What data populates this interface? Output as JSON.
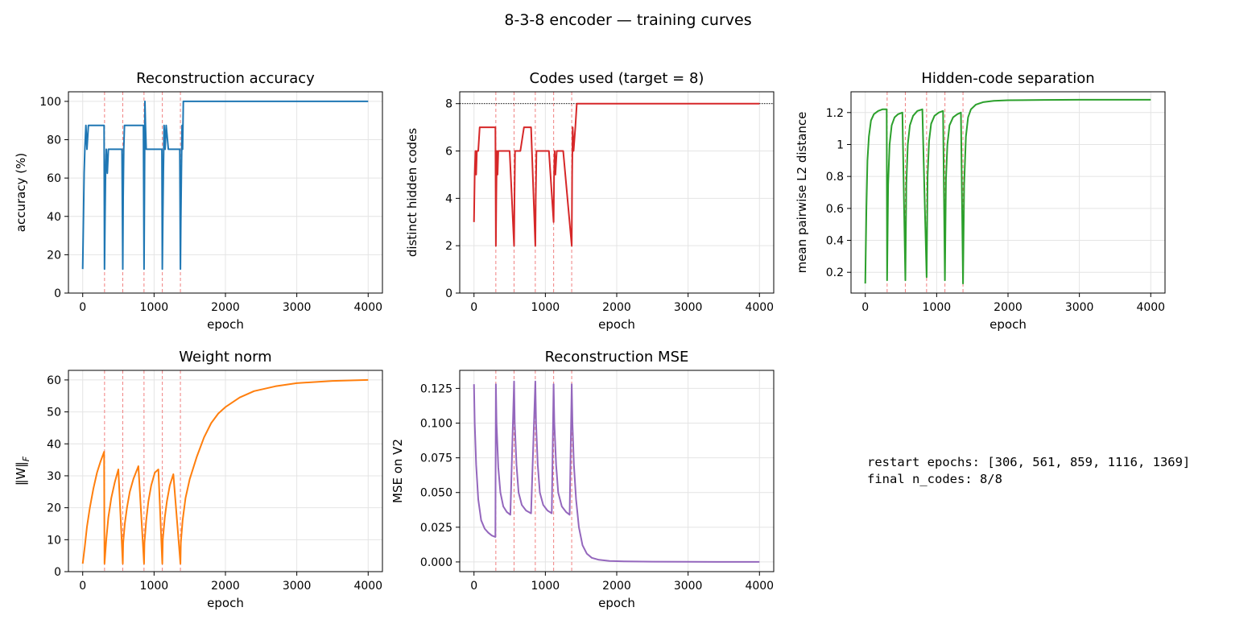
{
  "figure": {
    "suptitle": "8-3-8 encoder — training curves",
    "info_lines": [
      "restart epochs: [306, 561, 859, 1116, 1369]",
      "final n_codes: 8/8"
    ]
  },
  "colors": {
    "accuracy": "#1f77b4",
    "codes": "#d62728",
    "separation": "#2ca02c",
    "weight_norm": "#ff7f0e",
    "mse": "#9467bd",
    "restart_marker": "#f08080",
    "grid": "#e4e4e4",
    "target_line": "#000000"
  },
  "restart_epochs": [
    306,
    561,
    859,
    1116,
    1369
  ],
  "chart_data": [
    {
      "id": "accuracy",
      "type": "line",
      "title": "Reconstruction accuracy",
      "xlabel": "epoch",
      "ylabel": "accuracy (%)",
      "xlim": [
        -200,
        4200
      ],
      "ylim": [
        0,
        105
      ],
      "xticks": [
        0,
        1000,
        2000,
        3000,
        4000
      ],
      "yticks": [
        0,
        20,
        40,
        60,
        80,
        100
      ],
      "grid": true,
      "x": [
        0,
        10,
        20,
        30,
        45,
        60,
        80,
        100,
        150,
        250,
        300,
        306,
        312,
        320,
        330,
        345,
        360,
        380,
        400,
        450,
        550,
        561,
        567,
        575,
        585,
        600,
        620,
        640,
        700,
        800,
        850,
        859,
        865,
        872,
        880,
        890,
        905,
        920,
        950,
        1050,
        1110,
        1116,
        1122,
        1130,
        1140,
        1155,
        1170,
        1200,
        1300,
        1360,
        1369,
        1375,
        1383,
        1392,
        1400,
        1410,
        2000,
        3000,
        4000
      ],
      "y": [
        12.5,
        37.5,
        62.5,
        75,
        87.5,
        75,
        87.5,
        87.5,
        87.5,
        87.5,
        87.5,
        12.5,
        37.5,
        62.5,
        75,
        62.5,
        75,
        75,
        75,
        75,
        75,
        12.5,
        50,
        75,
        87.5,
        87.5,
        87.5,
        87.5,
        87.5,
        87.5,
        87.5,
        12.5,
        50,
        100,
        87.5,
        75,
        75,
        75,
        75,
        75,
        75,
        12.5,
        37.5,
        62.5,
        87.5,
        75,
        87.5,
        75,
        75,
        75,
        12.5,
        37.5,
        62.5,
        87.5,
        75,
        100,
        100,
        100,
        100
      ]
    },
    {
      "id": "codes",
      "type": "line",
      "title": "Codes used (target = 8)",
      "xlabel": "epoch",
      "ylabel": "distinct hidden codes",
      "xlim": [
        -200,
        4200
      ],
      "ylim": [
        0,
        8.5
      ],
      "xticks": [
        0,
        1000,
        2000,
        3000,
        4000
      ],
      "yticks": [
        0,
        2,
        4,
        6,
        8
      ],
      "grid": true,
      "target": 8,
      "x": [
        0,
        10,
        20,
        30,
        40,
        60,
        80,
        100,
        200,
        300,
        306,
        312,
        320,
        330,
        340,
        360,
        400,
        500,
        561,
        567,
        575,
        585,
        600,
        650,
        700,
        800,
        859,
        865,
        875,
        890,
        950,
        1050,
        1116,
        1122,
        1130,
        1140,
        1160,
        1250,
        1369,
        1375,
        1383,
        1395,
        1420,
        1440,
        2000,
        3000,
        4000
      ],
      "y": [
        3,
        5,
        6,
        5,
        6,
        6,
        7,
        7,
        7,
        7,
        2,
        4,
        6,
        5,
        6,
        6,
        6,
        6,
        2,
        4,
        6,
        6,
        6,
        6,
        7,
        7,
        2,
        4,
        6,
        6,
        6,
        6,
        3,
        5,
        6,
        5,
        6,
        6,
        2,
        5,
        7,
        6,
        7,
        8,
        8,
        8,
        8
      ]
    },
    {
      "id": "separation",
      "type": "line",
      "title": "Hidden-code separation",
      "xlabel": "epoch",
      "ylabel": "mean pairwise L2 distance",
      "xlim": [
        -200,
        4200
      ],
      "ylim": [
        0.07,
        1.33
      ],
      "xticks": [
        0,
        1000,
        2000,
        3000,
        4000
      ],
      "yticks": [
        0.2,
        0.4,
        0.6,
        0.8,
        1.0,
        1.2
      ],
      "grid": true,
      "x": [
        0,
        15,
        30,
        50,
        80,
        120,
        180,
        240,
        300,
        306,
        320,
        340,
        370,
        410,
        460,
        520,
        561,
        575,
        595,
        625,
        670,
        730,
        800,
        859,
        873,
        893,
        923,
        970,
        1030,
        1090,
        1116,
        1130,
        1150,
        1180,
        1230,
        1290,
        1340,
        1369,
        1385,
        1410,
        1440,
        1480,
        1550,
        1650,
        1800,
        2000,
        2500,
        3000,
        4000
      ],
      "y": [
        0.13,
        0.6,
        0.9,
        1.05,
        1.15,
        1.19,
        1.21,
        1.22,
        1.22,
        0.15,
        0.75,
        1.0,
        1.12,
        1.17,
        1.19,
        1.2,
        0.15,
        0.75,
        1.0,
        1.12,
        1.18,
        1.21,
        1.22,
        0.17,
        0.8,
        1.02,
        1.13,
        1.18,
        1.2,
        1.21,
        0.15,
        0.78,
        1.0,
        1.12,
        1.17,
        1.19,
        1.2,
        0.13,
        0.75,
        1.05,
        1.17,
        1.22,
        1.25,
        1.265,
        1.273,
        1.277,
        1.279,
        1.28,
        1.28
      ]
    },
    {
      "id": "weight_norm",
      "type": "line",
      "title": "Weight norm",
      "xlabel": "epoch",
      "ylabel": "‖W‖_F",
      "ylabel_main": "‖W‖",
      "ylabel_sub": "F",
      "xlim": [
        -200,
        4200
      ],
      "ylim": [
        0,
        63
      ],
      "xticks": [
        0,
        1000,
        2000,
        3000,
        4000
      ],
      "yticks": [
        0,
        10,
        20,
        30,
        40,
        50,
        60
      ],
      "grid": true,
      "x": [
        0,
        30,
        60,
        100,
        150,
        200,
        250,
        300,
        306,
        330,
        360,
        400,
        450,
        500,
        561,
        567,
        590,
        620,
        660,
        710,
        780,
        859,
        865,
        890,
        920,
        960,
        1010,
        1060,
        1116,
        1122,
        1150,
        1180,
        1220,
        1270,
        1369,
        1375,
        1400,
        1440,
        1500,
        1600,
        1700,
        1800,
        1900,
        2000,
        2200,
        2400,
        2700,
        3000,
        3500,
        4000
      ],
      "y": [
        2.5,
        8,
        14,
        20,
        26,
        31,
        34.5,
        37.5,
        2.5,
        10,
        17,
        23,
        28,
        32,
        2.5,
        9,
        15,
        20,
        25,
        29,
        33,
        2.5,
        9,
        16,
        22,
        27,
        31,
        32,
        2.5,
        10,
        17,
        22,
        27,
        30.5,
        2.5,
        9,
        16,
        23,
        29,
        36,
        42,
        46.5,
        49.5,
        51.5,
        54.5,
        56.5,
        58,
        59,
        59.7,
        60
      ]
    },
    {
      "id": "mse",
      "type": "line",
      "title": "Reconstruction MSE",
      "xlabel": "epoch",
      "ylabel": "MSE on V2",
      "xlim": [
        -200,
        4200
      ],
      "ylim": [
        -0.007,
        0.138
      ],
      "xticks": [
        0,
        1000,
        2000,
        3000,
        4000
      ],
      "yticks": [
        0.0,
        0.025,
        0.05,
        0.075,
        0.1,
        0.125
      ],
      "ytick_labels": [
        "0.000",
        "0.025",
        "0.050",
        "0.075",
        "0.100",
        "0.125"
      ],
      "grid": true,
      "x": [
        0,
        10,
        30,
        60,
        100,
        150,
        200,
        250,
        300,
        306,
        316,
        340,
        370,
        410,
        460,
        510,
        561,
        571,
        595,
        625,
        670,
        730,
        800,
        859,
        869,
        893,
        923,
        970,
        1030,
        1090,
        1116,
        1126,
        1150,
        1180,
        1230,
        1290,
        1340,
        1369,
        1379,
        1400,
        1430,
        1470,
        1520,
        1580,
        1650,
        1750,
        1900,
        2100,
        2500,
        3000,
        4000
      ],
      "y": [
        0.128,
        0.1,
        0.07,
        0.045,
        0.03,
        0.024,
        0.021,
        0.019,
        0.018,
        0.128,
        0.1,
        0.068,
        0.05,
        0.04,
        0.036,
        0.034,
        0.13,
        0.1,
        0.07,
        0.05,
        0.041,
        0.037,
        0.035,
        0.13,
        0.1,
        0.07,
        0.05,
        0.041,
        0.037,
        0.035,
        0.128,
        0.1,
        0.07,
        0.05,
        0.04,
        0.036,
        0.034,
        0.128,
        0.1,
        0.07,
        0.045,
        0.025,
        0.012,
        0.006,
        0.003,
        0.0015,
        0.0007,
        0.0004,
        0.0002,
        0.0001,
        0.0
      ]
    }
  ]
}
